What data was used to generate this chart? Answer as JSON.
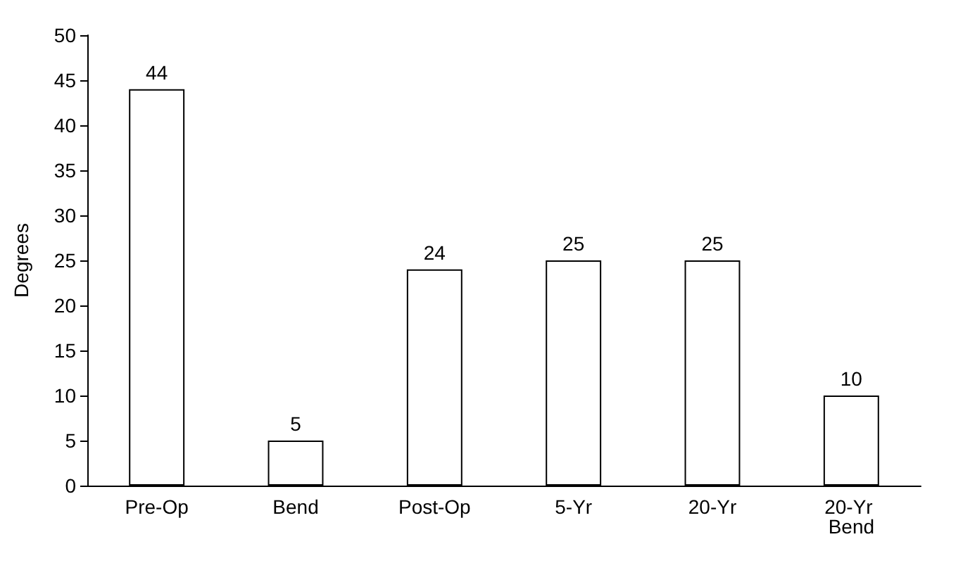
{
  "chart_data": {
    "type": "bar",
    "ylabel": "Degrees",
    "categories": [
      "Pre-Op",
      "Bend",
      "Post-Op",
      "5-Yr",
      "20-Yr",
      "20-Yr Bend"
    ],
    "values": [
      44,
      5,
      24,
      25,
      25,
      10
    ],
    "color": "#ffffff",
    "ylim": [
      0,
      50
    ],
    "yticks": [
      0,
      5,
      10,
      15,
      20,
      25,
      30,
      35,
      40,
      45,
      50
    ],
    "grid": false,
    "data_labels": true
  }
}
